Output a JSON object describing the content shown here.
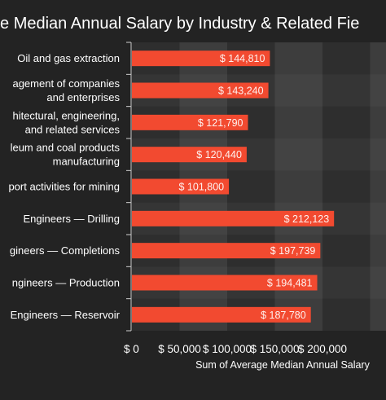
{
  "chart_data": {
    "type": "bar",
    "orientation": "horizontal",
    "title": "Average Median Annual Salary by Industry & Related Fields",
    "title_visible": "erage Median Annual Salary by Industry & Related Fie",
    "xlabel": "Sum of Average Median Annual Salary",
    "ylabel": "",
    "xlim": [
      0,
      200000
    ],
    "x_ticks": [
      "$ 0",
      "$ 50,000",
      "$ 100,000",
      "$ 150,000",
      "$ 200,000"
    ],
    "x_tick_values": [
      0,
      50000,
      100000,
      150000,
      200000
    ],
    "grid": true,
    "categories": [
      "Oil and gas extraction",
      "agement of companies and enterprises",
      "hitectural, engineering, and related services",
      "leum and coal products manufacturing",
      "port activities for mining",
      "Engineers — Drilling",
      "gineers — Completions",
      "ngineers — Production",
      "Engineers — Reservoir"
    ],
    "category_lines": [
      [
        "Oil and gas extraction"
      ],
      [
        "agement of companies",
        "and enterprises"
      ],
      [
        "hitectural, engineering,",
        "and related services"
      ],
      [
        "leum and coal products",
        "manufacturing"
      ],
      [
        "port activities for mining"
      ],
      [
        "Engineers — Drilling"
      ],
      [
        "gineers — Completions"
      ],
      [
        "ngineers — Production"
      ],
      [
        "Engineers — Reservoir"
      ]
    ],
    "values": [
      144810,
      143240,
      121790,
      120440,
      101800,
      212123,
      197739,
      194481,
      187780
    ],
    "data_labels": [
      "$ 144,810",
      "$ 143,240",
      "$ 121,790",
      "$ 120,440",
      "$ 101,800",
      "$ 212,123",
      "$ 197,739",
      "$ 194,481",
      "$ 187,780"
    ],
    "colors": {
      "bar": "#f24a30",
      "background": "#232323",
      "plot_band_dark": "#2e2e2e",
      "plot_band_light": "#3d3d3d",
      "text": "#ffffff"
    }
  }
}
